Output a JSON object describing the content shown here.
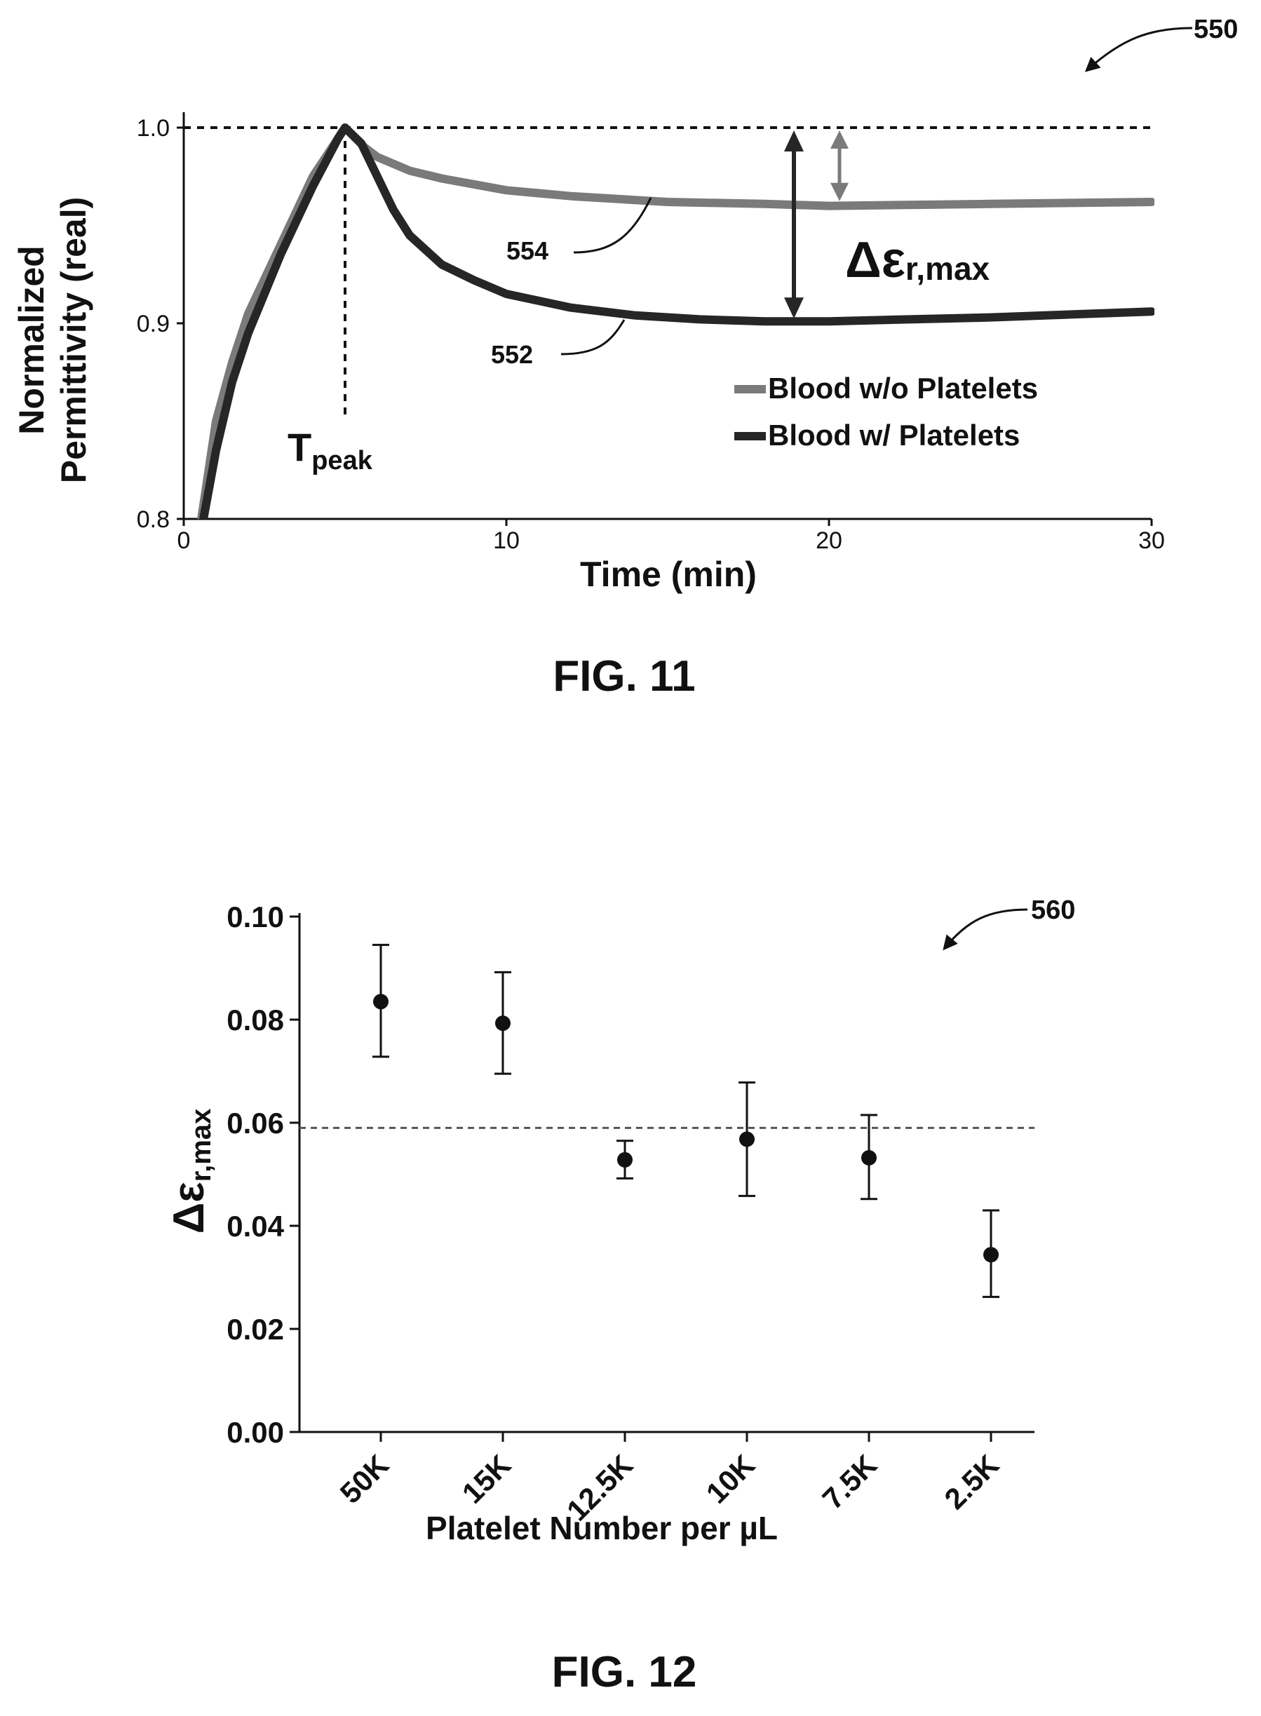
{
  "figures": {
    "fig11": {
      "ref_number": "550",
      "caption": "FIG. 11"
    },
    "fig12": {
      "ref_number": "560",
      "caption": "FIG. 12"
    }
  },
  "chart_data": [
    {
      "type": "line",
      "xlabel": "Time (min)",
      "ylabel_line1": "Normalized",
      "ylabel_line2": "Permittivity (real)",
      "xlim": [
        0,
        30
      ],
      "ylim": [
        0.8,
        1.0
      ],
      "xticks": [
        "0",
        "10",
        "20",
        "30"
      ],
      "yticks": [
        "0.8",
        "0.9",
        "1.0"
      ],
      "reference_line_y": 1.0,
      "peak_time": 5,
      "peak_label_main": "T",
      "peak_label_sub": "peak",
      "delta_label_main": "Δε",
      "delta_label_sub": "r,max",
      "legend_position": "bottom-right",
      "series": [
        {
          "name": "Blood w/o Platelets",
          "ref_label": "554",
          "color": "#7a7a7a",
          "x": [
            0.5,
            1,
            1.5,
            2,
            3,
            4,
            4.8,
            5,
            5.3,
            5.6,
            6,
            7,
            8,
            10,
            12,
            15,
            18,
            20,
            25,
            30
          ],
          "y": [
            0.795,
            0.85,
            0.88,
            0.905,
            0.94,
            0.975,
            0.995,
            1.0,
            0.995,
            0.99,
            0.985,
            0.978,
            0.974,
            0.968,
            0.965,
            0.962,
            0.961,
            0.96,
            0.961,
            0.962
          ]
        },
        {
          "name": "Blood w/ Platelets",
          "ref_label": "552",
          "color": "#262626",
          "x": [
            0.5,
            1,
            1.5,
            2,
            3,
            4,
            4.8,
            5,
            5.5,
            6,
            6.5,
            7,
            8,
            9,
            10,
            12,
            14,
            16,
            18,
            20,
            25,
            30
          ],
          "y": [
            0.79,
            0.835,
            0.87,
            0.895,
            0.935,
            0.97,
            0.995,
            1.0,
            0.992,
            0.975,
            0.958,
            0.945,
            0.93,
            0.922,
            0.915,
            0.908,
            0.904,
            0.902,
            0.901,
            0.901,
            0.903,
            0.906
          ]
        }
      ]
    },
    {
      "type": "scatter",
      "xlabel": "Platelet Number per µL",
      "ylabel_main": "Δε",
      "ylabel_sub": "r,max",
      "ylim": [
        0.0,
        0.1
      ],
      "yticks": [
        "0.00",
        "0.02",
        "0.04",
        "0.06",
        "0.08",
        "0.10"
      ],
      "categories": [
        "50K",
        "15K",
        "12.5K",
        "10K",
        "7.5K",
        "2.5K"
      ],
      "values": [
        0.0835,
        0.0793,
        0.0528,
        0.0568,
        0.0532,
        0.0344
      ],
      "error_low": [
        0.0728,
        0.0695,
        0.0492,
        0.0458,
        0.0452,
        0.0262
      ],
      "error_high": [
        0.0945,
        0.0892,
        0.0565,
        0.0678,
        0.0615,
        0.043
      ],
      "reference_line_y": 0.059,
      "grid": false
    }
  ]
}
